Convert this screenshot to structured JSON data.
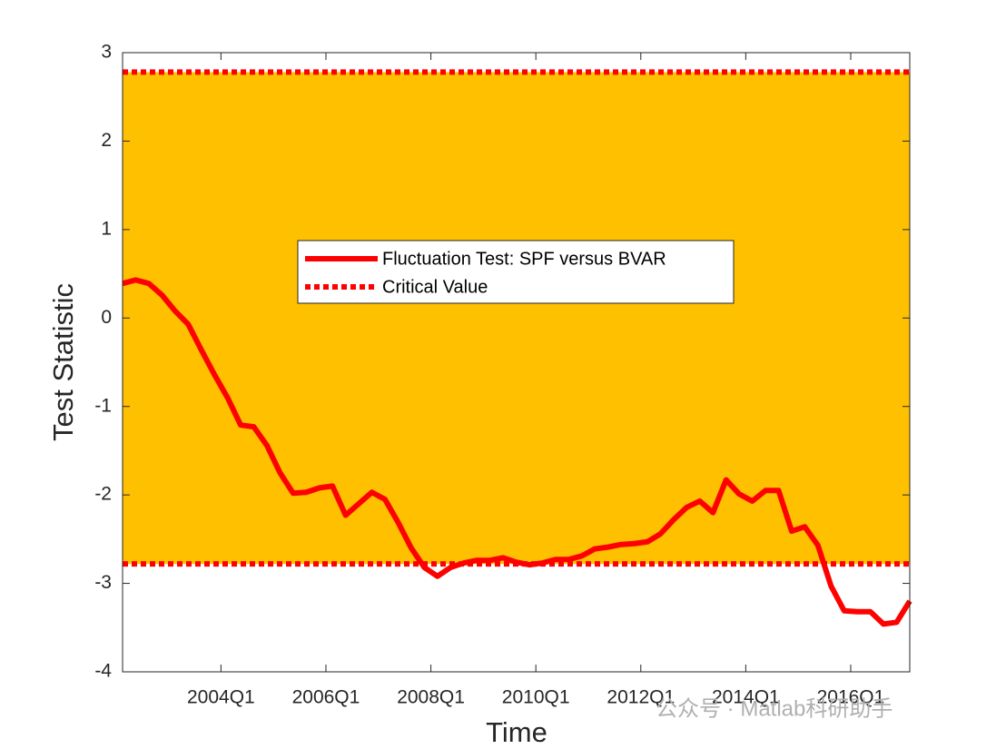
{
  "chart_data": {
    "type": "line",
    "xlabel": "Time",
    "ylabel": "Test Statistic",
    "x": [
      2002.125,
      2002.375,
      2002.625,
      2002.875,
      2003.125,
      2003.375,
      2003.625,
      2003.875,
      2004.125,
      2004.375,
      2004.625,
      2004.875,
      2005.125,
      2005.375,
      2005.625,
      2005.875,
      2006.125,
      2006.375,
      2006.625,
      2006.875,
      2007.125,
      2007.375,
      2007.625,
      2007.875,
      2008.125,
      2008.375,
      2008.625,
      2008.875,
      2009.125,
      2009.375,
      2009.625,
      2009.875,
      2010.125,
      2010.375,
      2010.625,
      2010.875,
      2011.125,
      2011.375,
      2011.625,
      2011.875,
      2012.125,
      2012.375,
      2012.625,
      2012.875,
      2013.125,
      2013.375,
      2013.625,
      2013.875,
      2014.125,
      2014.375,
      2014.625,
      2014.875,
      2015.125,
      2015.375,
      2015.625,
      2015.875,
      2016.125,
      2016.375,
      2016.625,
      2016.875,
      2017.125
    ],
    "series": [
      {
        "name": "Fluctuation Test: SPF versus BVAR",
        "color": "#ff0000",
        "values": [
          0.39,
          0.43,
          0.39,
          0.26,
          0.08,
          -0.07,
          -0.36,
          -0.64,
          -0.9,
          -1.21,
          -1.23,
          -1.44,
          -1.75,
          -1.98,
          -1.97,
          -1.92,
          -1.9,
          -2.23,
          -2.1,
          -1.97,
          -2.05,
          -2.31,
          -2.6,
          -2.82,
          -2.92,
          -2.82,
          -2.77,
          -2.74,
          -2.74,
          -2.71,
          -2.76,
          -2.79,
          -2.77,
          -2.73,
          -2.73,
          -2.69,
          -2.61,
          -2.59,
          -2.56,
          -2.55,
          -2.53,
          -2.44,
          -2.28,
          -2.14,
          -2.07,
          -2.2,
          -1.83,
          -1.99,
          -2.07,
          -1.95,
          -1.95,
          -2.41,
          -2.36,
          -2.57,
          -3.03,
          -3.31,
          -3.32,
          -3.32,
          -3.46,
          -3.44,
          -3.2
        ]
      }
    ],
    "critical_value": {
      "name": "Critical Value",
      "color": "#ff0000",
      "values": [
        2.78,
        -2.78
      ]
    },
    "band_color": "#ffc000",
    "xlim": [
      2002.125,
      2017.125
    ],
    "xticks": [
      {
        "value": 2004,
        "label": "2004Q1"
      },
      {
        "value": 2006,
        "label": "2006Q1"
      },
      {
        "value": 2008,
        "label": "2008Q1"
      },
      {
        "value": 2010,
        "label": "2010Q1"
      },
      {
        "value": 2012,
        "label": "2012Q1"
      },
      {
        "value": 2014,
        "label": "2014Q1"
      },
      {
        "value": 2016,
        "label": "2016Q1"
      }
    ],
    "ylim": [
      -4,
      3
    ],
    "yticks": [
      -4,
      -3,
      -2,
      -1,
      0,
      1,
      2,
      3
    ],
    "legend": "center",
    "watermark": "公众号 · Matlab科研助手"
  }
}
